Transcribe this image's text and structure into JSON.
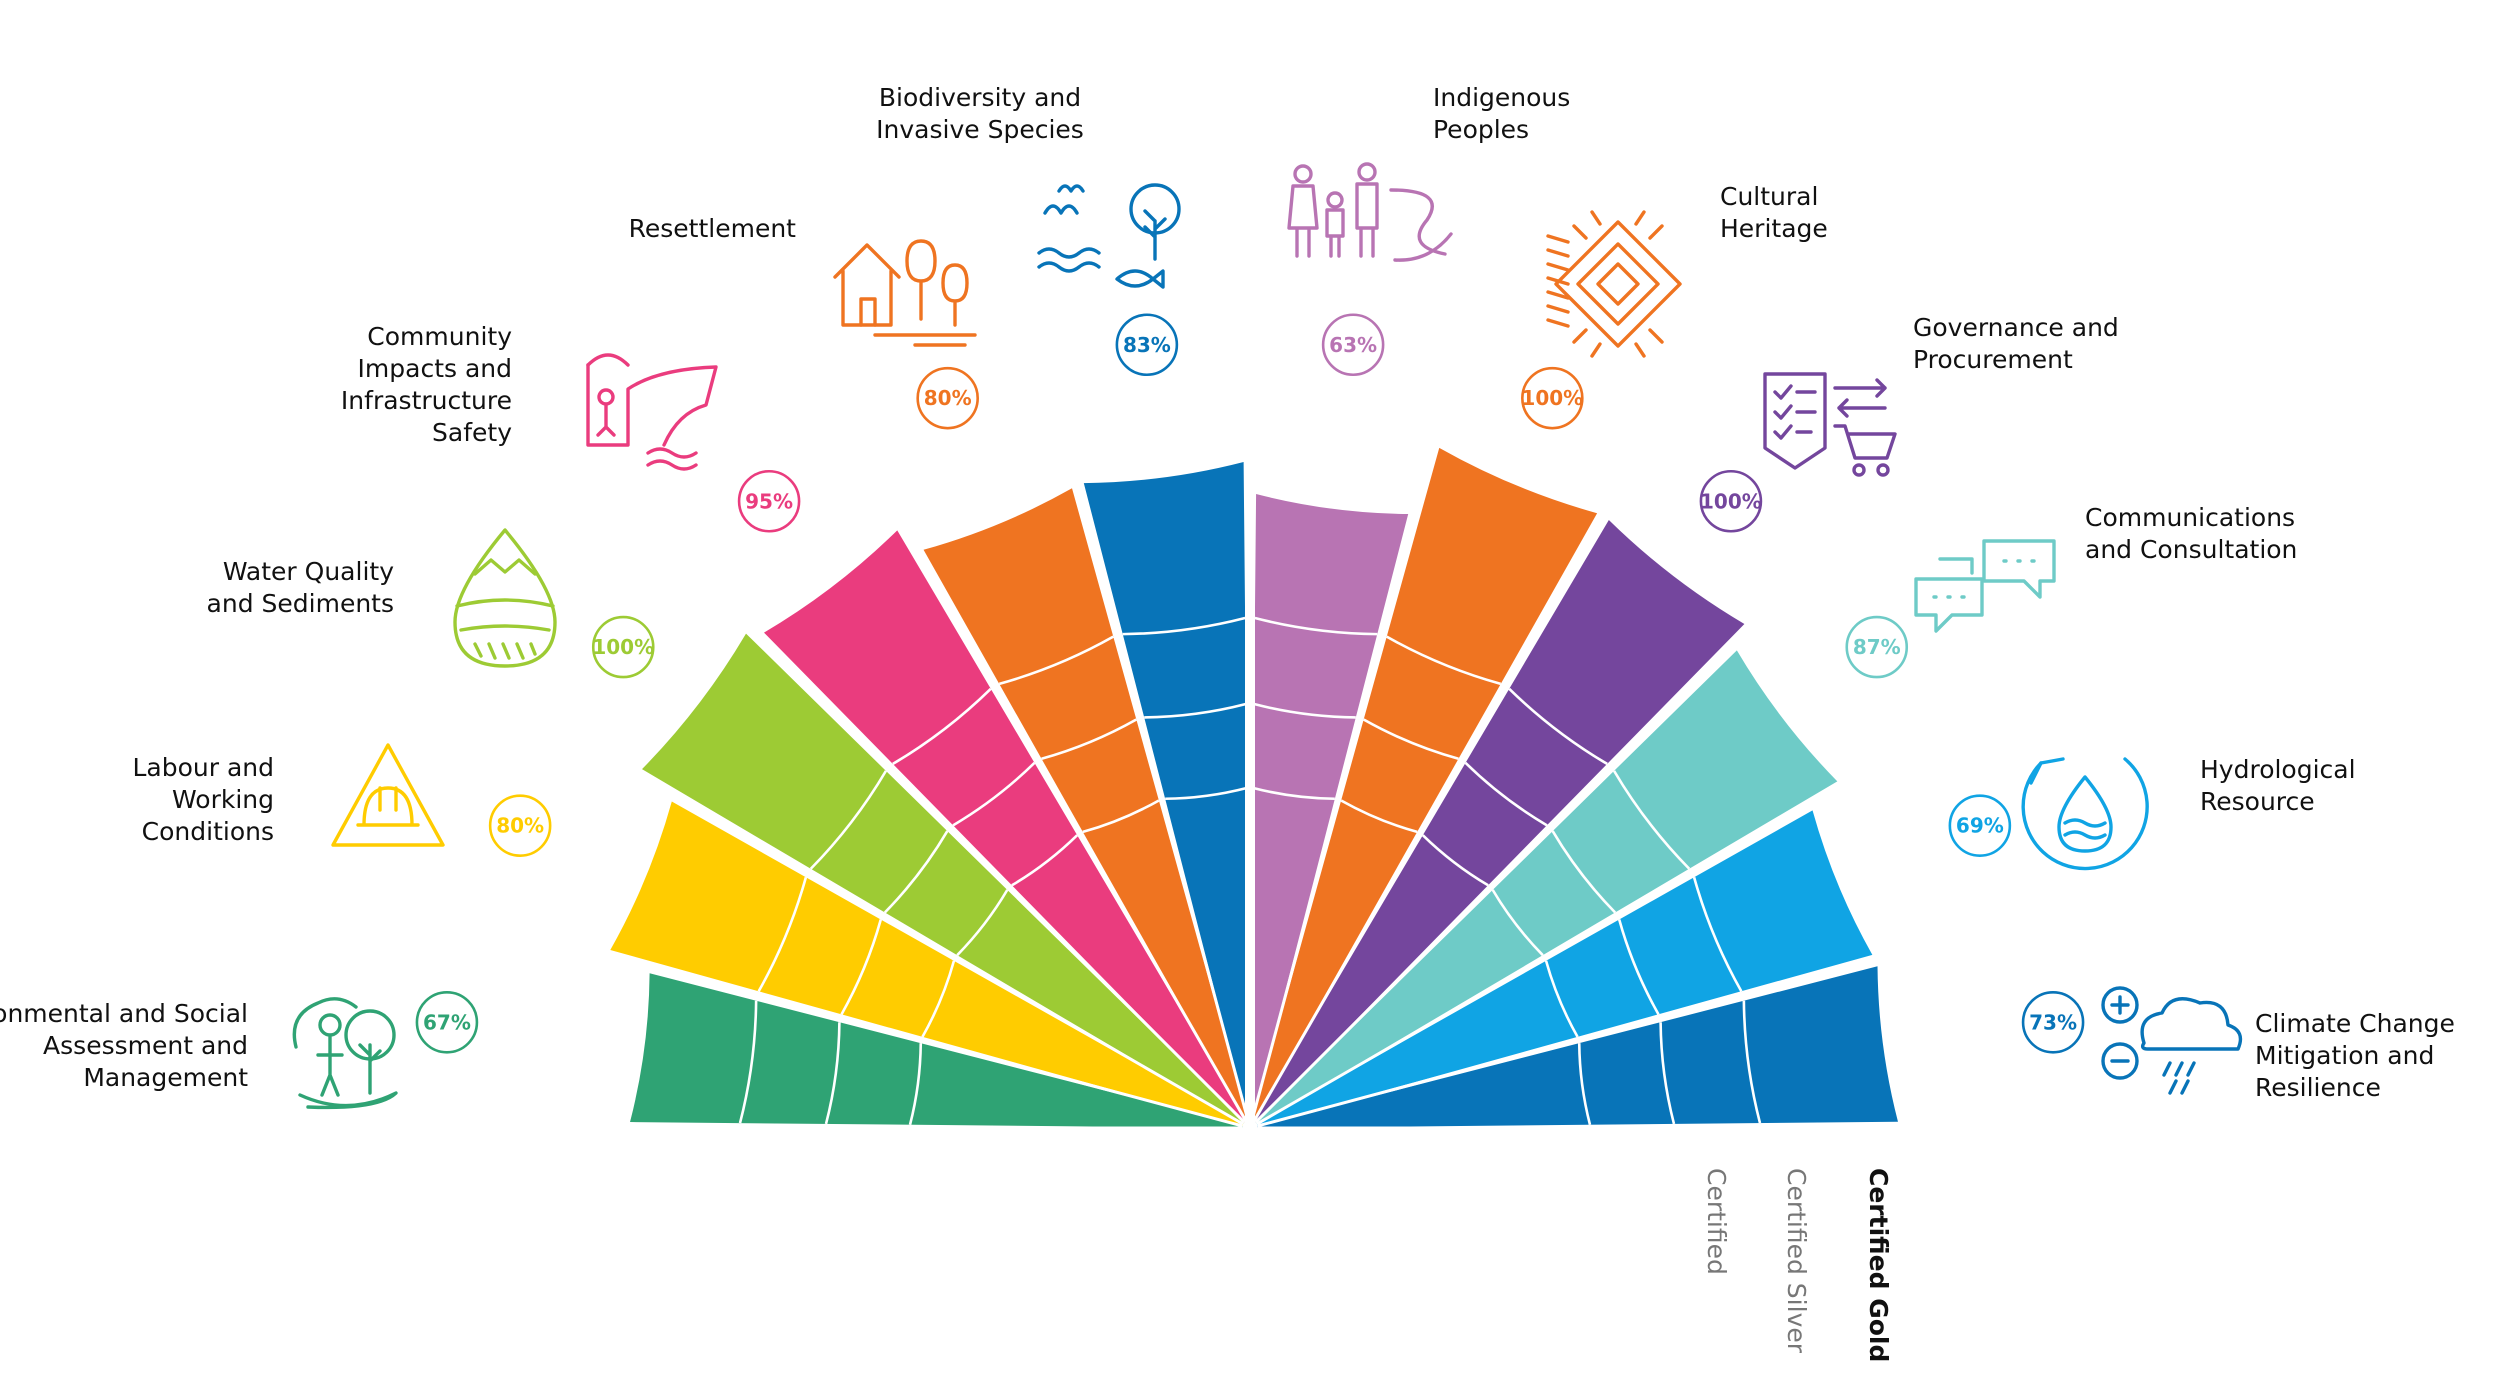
{
  "chart_data": {
    "type": "polar-bar",
    "tiers": [
      "Certified",
      "Certified Silver",
      "Certified Gold"
    ],
    "tier_max": 3,
    "categories": [
      {
        "name": [
          "Environmental and Social",
          "Assessment and",
          "Management"
        ],
        "value": 67,
        "display": "67%",
        "color": "#2fa374",
        "icon": "person-tree-icon"
      },
      {
        "name": [
          "Labour and",
          "Working",
          "Conditions"
        ],
        "value": 80,
        "display": "80%",
        "color": "#ffcc00",
        "icon": "hardhat-warning-icon"
      },
      {
        "name": [
          "Water Quality",
          "and Sediments"
        ],
        "value": 100,
        "display": "100%",
        "color": "#9dcb34",
        "icon": "water-drop-icon"
      },
      {
        "name": [
          "Community",
          "Impacts and",
          "Infrastructure",
          "Safety"
        ],
        "value": 95,
        "display": "95%",
        "color": "#ea3c7e",
        "icon": "dam-person-icon"
      },
      {
        "name": [
          "Resettlement"
        ],
        "value": 80,
        "display": "80%",
        "color": "#ef7421",
        "icon": "house-trees-icon"
      },
      {
        "name": [
          "Biodiversity and",
          "Invasive Species"
        ],
        "value": 83,
        "display": "83%",
        "color": "#0874b8",
        "icon": "bird-fish-tree-icon"
      },
      {
        "name": [
          "Indigenous",
          "Peoples"
        ],
        "value": 63,
        "display": "63%",
        "color": "#b874b3",
        "icon": "family-river-icon"
      },
      {
        "name": [
          "Cultural",
          "Heritage"
        ],
        "value": 100,
        "display": "100%",
        "color": "#ef7421",
        "icon": "heritage-pattern-icon"
      },
      {
        "name": [
          "Governance and",
          "Procurement"
        ],
        "value": 100,
        "display": "100%",
        "color": "#74469d",
        "icon": "checklist-cart-icon"
      },
      {
        "name": [
          "Communications",
          "and Consultation"
        ],
        "value": 87,
        "display": "87%",
        "color": "#6ecbc7",
        "icon": "chat-bubbles-icon"
      },
      {
        "name": [
          "Hydrological",
          "Resource"
        ],
        "value": 69,
        "display": "69%",
        "color": "#10a4e4",
        "icon": "water-cycle-icon"
      },
      {
        "name": [
          "Climate Change",
          "Mitigation and",
          "Resilience"
        ],
        "value": 73,
        "display": "73%",
        "color": "#0874b8",
        "icon": "cloud-plus-minus-icon"
      }
    ],
    "tier_label_colors": [
      "#777777",
      "#777777",
      "#111111"
    ],
    "label_color": "#111111"
  }
}
